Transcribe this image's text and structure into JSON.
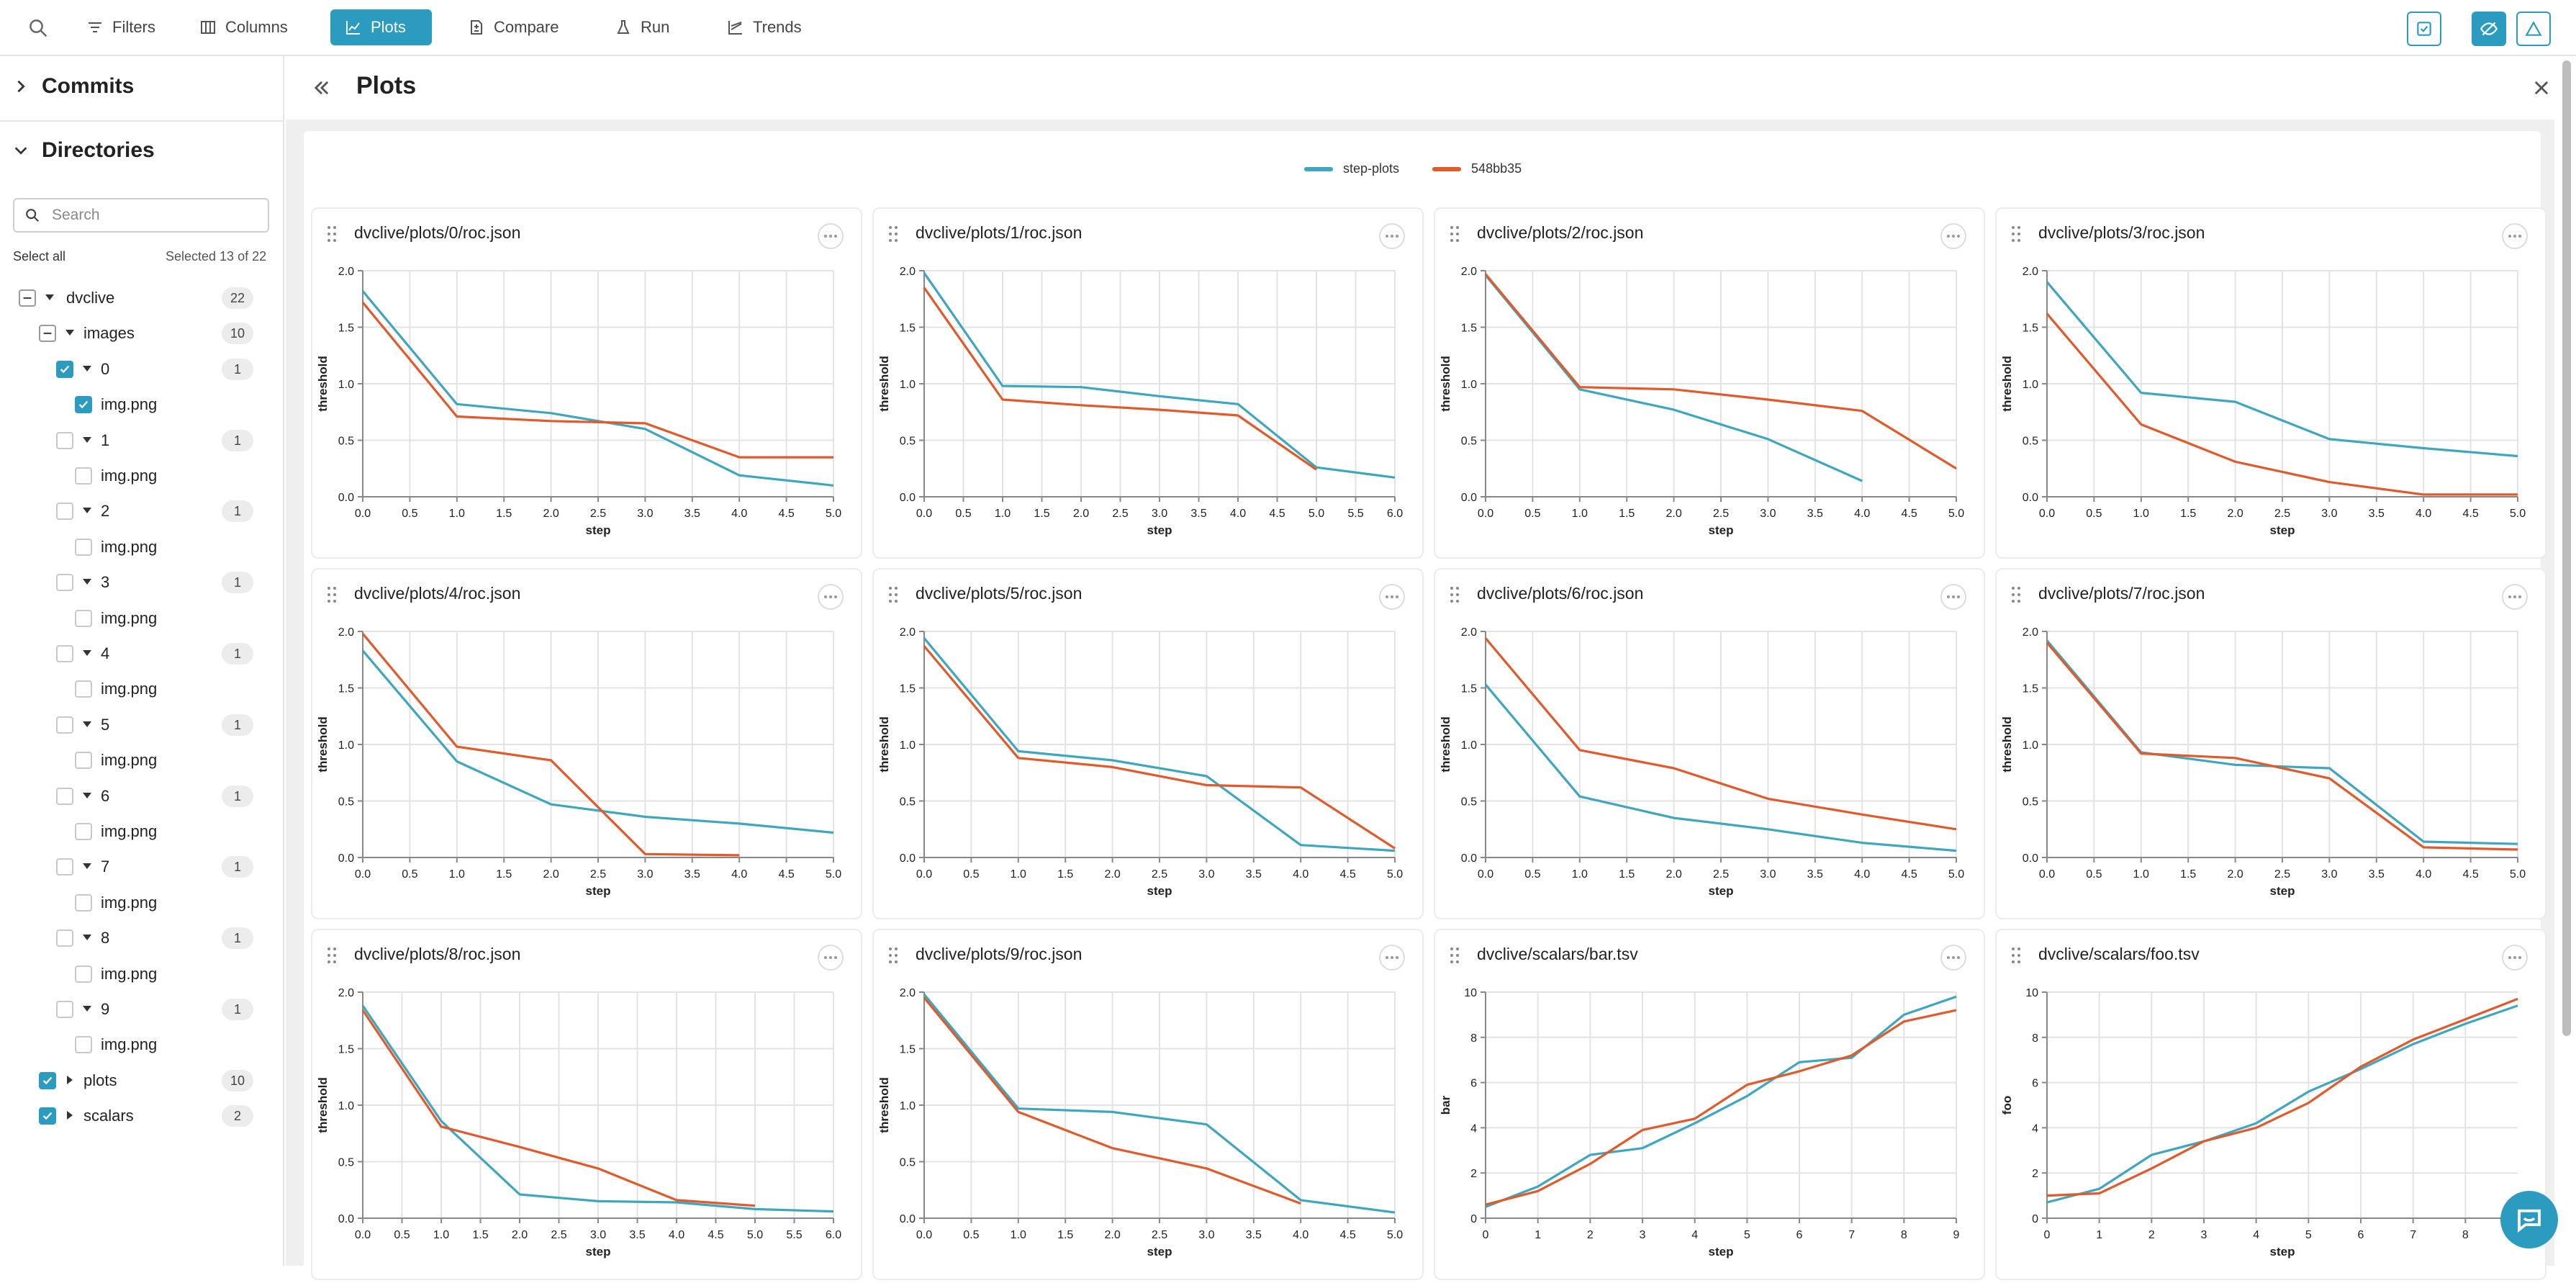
{
  "toolbar": {
    "buttons": [
      {
        "label": "Filters",
        "icon": "filter-icon"
      },
      {
        "label": "Columns",
        "icon": "columns-icon"
      },
      {
        "label": "Plots",
        "icon": "plots-icon",
        "active": true
      },
      {
        "label": "Compare",
        "icon": "compare-icon"
      },
      {
        "label": "Run",
        "icon": "run-icon"
      },
      {
        "label": "Trends",
        "icon": "trends-icon"
      }
    ]
  },
  "sidebar": {
    "commits_label": "Commits",
    "directories_label": "Directories",
    "search_placeholder": "Search",
    "select_all": "Select all",
    "selected_count": "Selected 13 of 22",
    "tree": [
      {
        "label": "dvclive",
        "depth": 0,
        "state": "indeterminate",
        "arrow": "down",
        "badge": "22"
      },
      {
        "label": "images",
        "depth": 1,
        "state": "indeterminate",
        "arrow": "down",
        "badge": "10"
      },
      {
        "label": "0",
        "depth": 2,
        "state": "checked",
        "arrow": "down",
        "badge": "1"
      },
      {
        "label": "img.png",
        "depth": 3,
        "state": "checked",
        "arrow": "none",
        "badge": ""
      },
      {
        "label": "1",
        "depth": 2,
        "state": "unchecked",
        "arrow": "down",
        "badge": "1"
      },
      {
        "label": "img.png",
        "depth": 3,
        "state": "unchecked",
        "arrow": "none",
        "badge": ""
      },
      {
        "label": "2",
        "depth": 2,
        "state": "unchecked",
        "arrow": "down",
        "badge": "1"
      },
      {
        "label": "img.png",
        "depth": 3,
        "state": "unchecked",
        "arrow": "none",
        "badge": ""
      },
      {
        "label": "3",
        "depth": 2,
        "state": "unchecked",
        "arrow": "down",
        "badge": "1"
      },
      {
        "label": "img.png",
        "depth": 3,
        "state": "unchecked",
        "arrow": "none",
        "badge": ""
      },
      {
        "label": "4",
        "depth": 2,
        "state": "unchecked",
        "arrow": "down",
        "badge": "1"
      },
      {
        "label": "img.png",
        "depth": 3,
        "state": "unchecked",
        "arrow": "none",
        "badge": ""
      },
      {
        "label": "5",
        "depth": 2,
        "state": "unchecked",
        "arrow": "down",
        "badge": "1"
      },
      {
        "label": "img.png",
        "depth": 3,
        "state": "unchecked",
        "arrow": "none",
        "badge": ""
      },
      {
        "label": "6",
        "depth": 2,
        "state": "unchecked",
        "arrow": "down",
        "badge": "1"
      },
      {
        "label": "img.png",
        "depth": 3,
        "state": "unchecked",
        "arrow": "none",
        "badge": ""
      },
      {
        "label": "7",
        "depth": 2,
        "state": "unchecked",
        "arrow": "down",
        "badge": "1"
      },
      {
        "label": "img.png",
        "depth": 3,
        "state": "unchecked",
        "arrow": "none",
        "badge": ""
      },
      {
        "label": "8",
        "depth": 2,
        "state": "unchecked",
        "arrow": "down",
        "badge": "1"
      },
      {
        "label": "img.png",
        "depth": 3,
        "state": "unchecked",
        "arrow": "none",
        "badge": ""
      },
      {
        "label": "9",
        "depth": 2,
        "state": "unchecked",
        "arrow": "down",
        "badge": "1"
      },
      {
        "label": "img.png",
        "depth": 3,
        "state": "unchecked",
        "arrow": "none",
        "badge": ""
      },
      {
        "label": "plots",
        "depth": 1,
        "state": "checked",
        "arrow": "right",
        "badge": "10"
      },
      {
        "label": "scalars",
        "depth": 1,
        "state": "checked",
        "arrow": "right",
        "badge": "2"
      }
    ]
  },
  "main": {
    "title": "Plots"
  },
  "legend": [
    {
      "name": "step-plots",
      "color": "#3fa6bf"
    },
    {
      "name": "548bb35",
      "color": "#e05a2b"
    }
  ],
  "colors": {
    "accent": "#2c9bc0",
    "series_a": "#3fa6bf",
    "series_b": "#e05a2b"
  },
  "chart_data": [
    {
      "type": "line",
      "title": "dvclive/plots/0/roc.json",
      "xlabel": "step",
      "ylabel": "threshold",
      "xlim": [
        0,
        5
      ],
      "ylim": [
        0,
        2
      ],
      "xticks": [
        0,
        0.5,
        1,
        1.5,
        2,
        2.5,
        3,
        3.5,
        4,
        4.5,
        5
      ],
      "yticks": [
        0,
        0.5,
        1,
        1.5,
        2
      ],
      "decimals": 1,
      "series": [
        {
          "name": "step-plots",
          "x": [
            0,
            1,
            2,
            3,
            4,
            5
          ],
          "y": [
            1.82,
            0.82,
            0.74,
            0.6,
            0.19,
            0.1
          ]
        },
        {
          "name": "548bb35",
          "x": [
            0,
            1,
            2,
            3,
            4,
            5
          ],
          "y": [
            1.72,
            0.71,
            0.67,
            0.65,
            0.35,
            0.35
          ]
        }
      ]
    },
    {
      "type": "line",
      "title": "dvclive/plots/1/roc.json",
      "xlabel": "step",
      "ylabel": "threshold",
      "xlim": [
        0,
        6
      ],
      "ylim": [
        0,
        2
      ],
      "xticks": [
        0,
        0.5,
        1,
        1.5,
        2,
        2.5,
        3,
        3.5,
        4,
        4.5,
        5,
        5.5,
        6
      ],
      "yticks": [
        0,
        0.5,
        1,
        1.5,
        2
      ],
      "decimals": 1,
      "series": [
        {
          "name": "step-plots",
          "x": [
            0,
            1,
            2,
            3,
            4,
            5,
            6
          ],
          "y": [
            1.98,
            0.98,
            0.97,
            0.89,
            0.82,
            0.26,
            0.17
          ]
        },
        {
          "name": "548bb35",
          "x": [
            0,
            1,
            2,
            3,
            4,
            5
          ],
          "y": [
            1.85,
            0.86,
            0.81,
            0.77,
            0.72,
            0.24
          ]
        }
      ]
    },
    {
      "type": "line",
      "title": "dvclive/plots/2/roc.json",
      "xlabel": "step",
      "ylabel": "threshold",
      "xlim": [
        0,
        5
      ],
      "ylim": [
        0,
        2
      ],
      "xticks": [
        0,
        0.5,
        1,
        1.5,
        2,
        2.5,
        3,
        3.5,
        4,
        4.5,
        5
      ],
      "yticks": [
        0,
        0.5,
        1,
        1.5,
        2
      ],
      "decimals": 1,
      "series": [
        {
          "name": "step-plots",
          "x": [
            0,
            1,
            2,
            3,
            4
          ],
          "y": [
            1.96,
            0.95,
            0.77,
            0.51,
            0.14
          ]
        },
        {
          "name": "548bb35",
          "x": [
            0,
            1,
            2,
            3,
            4,
            5
          ],
          "y": [
            1.97,
            0.97,
            0.95,
            0.86,
            0.76,
            0.25
          ]
        }
      ]
    },
    {
      "type": "line",
      "title": "dvclive/plots/3/roc.json",
      "xlabel": "step",
      "ylabel": "threshold",
      "xlim": [
        0,
        5
      ],
      "ylim": [
        0,
        2
      ],
      "xticks": [
        0,
        0.5,
        1,
        1.5,
        2,
        2.5,
        3,
        3.5,
        4,
        4.5,
        5
      ],
      "yticks": [
        0,
        0.5,
        1,
        1.5,
        2
      ],
      "decimals": 1,
      "series": [
        {
          "name": "step-plots",
          "x": [
            0,
            1,
            2,
            3,
            4,
            5
          ],
          "y": [
            1.9,
            0.92,
            0.84,
            0.51,
            0.43,
            0.36
          ]
        },
        {
          "name": "548bb35",
          "x": [
            0,
            1,
            2,
            3,
            4,
            5
          ],
          "y": [
            1.62,
            0.64,
            0.31,
            0.13,
            0.02,
            0.02
          ]
        }
      ]
    },
    {
      "type": "line",
      "title": "dvclive/plots/4/roc.json",
      "xlabel": "step",
      "ylabel": "threshold",
      "xlim": [
        0,
        5
      ],
      "ylim": [
        0,
        2
      ],
      "xticks": [
        0,
        0.5,
        1,
        1.5,
        2,
        2.5,
        3,
        3.5,
        4,
        4.5,
        5
      ],
      "yticks": [
        0,
        0.5,
        1,
        1.5,
        2
      ],
      "decimals": 1,
      "series": [
        {
          "name": "step-plots",
          "x": [
            0,
            1,
            2,
            3,
            4,
            5
          ],
          "y": [
            1.83,
            0.85,
            0.47,
            0.36,
            0.3,
            0.22
          ]
        },
        {
          "name": "548bb35",
          "x": [
            0,
            1,
            2,
            3,
            4
          ],
          "y": [
            1.98,
            0.98,
            0.86,
            0.03,
            0.02
          ]
        }
      ]
    },
    {
      "type": "line",
      "title": "dvclive/plots/5/roc.json",
      "xlabel": "step",
      "ylabel": "threshold",
      "xlim": [
        0,
        5
      ],
      "ylim": [
        0,
        2
      ],
      "xticks": [
        0,
        0.5,
        1,
        1.5,
        2,
        2.5,
        3,
        3.5,
        4,
        4.5,
        5
      ],
      "yticks": [
        0,
        0.5,
        1,
        1.5,
        2
      ],
      "decimals": 1,
      "series": [
        {
          "name": "step-plots",
          "x": [
            0,
            1,
            2,
            3,
            4,
            5
          ],
          "y": [
            1.94,
            0.94,
            0.86,
            0.72,
            0.11,
            0.06
          ]
        },
        {
          "name": "548bb35",
          "x": [
            0,
            1,
            2,
            3,
            4,
            5
          ],
          "y": [
            1.87,
            0.88,
            0.8,
            0.64,
            0.62,
            0.08
          ]
        }
      ]
    },
    {
      "type": "line",
      "title": "dvclive/plots/6/roc.json",
      "xlabel": "step",
      "ylabel": "threshold",
      "xlim": [
        0,
        5
      ],
      "ylim": [
        0,
        2
      ],
      "xticks": [
        0,
        0.5,
        1,
        1.5,
        2,
        2.5,
        3,
        3.5,
        4,
        4.5,
        5
      ],
      "yticks": [
        0,
        0.5,
        1,
        1.5,
        2
      ],
      "decimals": 1,
      "series": [
        {
          "name": "step-plots",
          "x": [
            0,
            1,
            2,
            3,
            4,
            5
          ],
          "y": [
            1.53,
            0.54,
            0.35,
            0.25,
            0.13,
            0.06
          ]
        },
        {
          "name": "548bb35",
          "x": [
            0,
            1,
            2,
            3,
            4,
            5
          ],
          "y": [
            1.94,
            0.95,
            0.79,
            0.52,
            0.38,
            0.25
          ]
        }
      ]
    },
    {
      "type": "line",
      "title": "dvclive/plots/7/roc.json",
      "xlabel": "step",
      "ylabel": "threshold",
      "xlim": [
        0,
        5
      ],
      "ylim": [
        0,
        2
      ],
      "xticks": [
        0,
        0.5,
        1,
        1.5,
        2,
        2.5,
        3,
        3.5,
        4,
        4.5,
        5
      ],
      "yticks": [
        0,
        0.5,
        1,
        1.5,
        2
      ],
      "decimals": 1,
      "series": [
        {
          "name": "step-plots",
          "x": [
            0,
            1,
            2,
            3,
            4,
            5
          ],
          "y": [
            1.92,
            0.93,
            0.82,
            0.79,
            0.14,
            0.12
          ]
        },
        {
          "name": "548bb35",
          "x": [
            0,
            1,
            2,
            3,
            4,
            5
          ],
          "y": [
            1.9,
            0.92,
            0.88,
            0.7,
            0.09,
            0.07
          ]
        }
      ]
    },
    {
      "type": "line",
      "title": "dvclive/plots/8/roc.json",
      "xlabel": "step",
      "ylabel": "threshold",
      "xlim": [
        0,
        6
      ],
      "ylim": [
        0,
        2
      ],
      "xticks": [
        0,
        0.5,
        1,
        1.5,
        2,
        2.5,
        3,
        3.5,
        4,
        4.5,
        5,
        5.5,
        6
      ],
      "yticks": [
        0,
        0.5,
        1,
        1.5,
        2
      ],
      "decimals": 1,
      "series": [
        {
          "name": "step-plots",
          "x": [
            0,
            1,
            2,
            3,
            4,
            5,
            6
          ],
          "y": [
            1.88,
            0.86,
            0.21,
            0.15,
            0.14,
            0.08,
            0.06
          ]
        },
        {
          "name": "548bb35",
          "x": [
            0,
            1,
            2,
            3,
            4,
            5
          ],
          "y": [
            1.84,
            0.81,
            0.63,
            0.44,
            0.16,
            0.11
          ]
        }
      ]
    },
    {
      "type": "line",
      "title": "dvclive/plots/9/roc.json",
      "xlabel": "step",
      "ylabel": "threshold",
      "xlim": [
        0,
        5
      ],
      "ylim": [
        0,
        2
      ],
      "xticks": [
        0,
        0.5,
        1,
        1.5,
        2,
        2.5,
        3,
        3.5,
        4,
        4.5,
        5
      ],
      "yticks": [
        0,
        0.5,
        1,
        1.5,
        2
      ],
      "decimals": 1,
      "series": [
        {
          "name": "step-plots",
          "x": [
            0,
            1,
            2,
            3,
            4,
            5
          ],
          "y": [
            1.98,
            0.97,
            0.94,
            0.83,
            0.16,
            0.05
          ]
        },
        {
          "name": "548bb35",
          "x": [
            0,
            1,
            2,
            3,
            4
          ],
          "y": [
            1.95,
            0.94,
            0.62,
            0.44,
            0.13
          ]
        }
      ]
    },
    {
      "type": "line",
      "title": "dvclive/scalars/bar.tsv",
      "xlabel": "step",
      "ylabel": "bar",
      "xlim": [
        0,
        9
      ],
      "ylim": [
        0,
        10
      ],
      "xticks": [
        0,
        1,
        2,
        3,
        4,
        5,
        6,
        7,
        8,
        9
      ],
      "yticks": [
        0,
        2,
        4,
        6,
        8,
        10
      ],
      "decimals": 0,
      "series": [
        {
          "name": "step-plots",
          "x": [
            0,
            1,
            2,
            3,
            4,
            5,
            6,
            7,
            8,
            9
          ],
          "y": [
            0.5,
            1.4,
            2.8,
            3.1,
            4.2,
            5.4,
            6.9,
            7.1,
            9.0,
            9.8
          ]
        },
        {
          "name": "548bb35",
          "x": [
            0,
            1,
            2,
            3,
            4,
            5,
            6,
            7,
            8,
            9
          ],
          "y": [
            0.6,
            1.2,
            2.4,
            3.9,
            4.4,
            5.9,
            6.5,
            7.2,
            8.7,
            9.2
          ]
        }
      ]
    },
    {
      "type": "line",
      "title": "dvclive/scalars/foo.tsv",
      "xlabel": "step",
      "ylabel": "foo",
      "xlim": [
        0,
        9
      ],
      "ylim": [
        0,
        10
      ],
      "xticks": [
        0,
        1,
        2,
        3,
        4,
        5,
        6,
        7,
        8
      ],
      "yticks": [
        0,
        2,
        4,
        6,
        8,
        10
      ],
      "decimals": 0,
      "series": [
        {
          "name": "step-plots",
          "x": [
            0,
            1,
            2,
            3,
            4,
            5,
            6,
            7,
            8,
            9
          ],
          "y": [
            0.7,
            1.3,
            2.8,
            3.4,
            4.2,
            5.6,
            6.6,
            7.7,
            8.6,
            9.4
          ]
        },
        {
          "name": "548bb35",
          "x": [
            0,
            1,
            2,
            3,
            4,
            5,
            6,
            7,
            8,
            9
          ],
          "y": [
            1.0,
            1.1,
            2.2,
            3.4,
            4.0,
            5.1,
            6.7,
            7.9,
            8.8,
            9.7
          ]
        }
      ]
    }
  ]
}
